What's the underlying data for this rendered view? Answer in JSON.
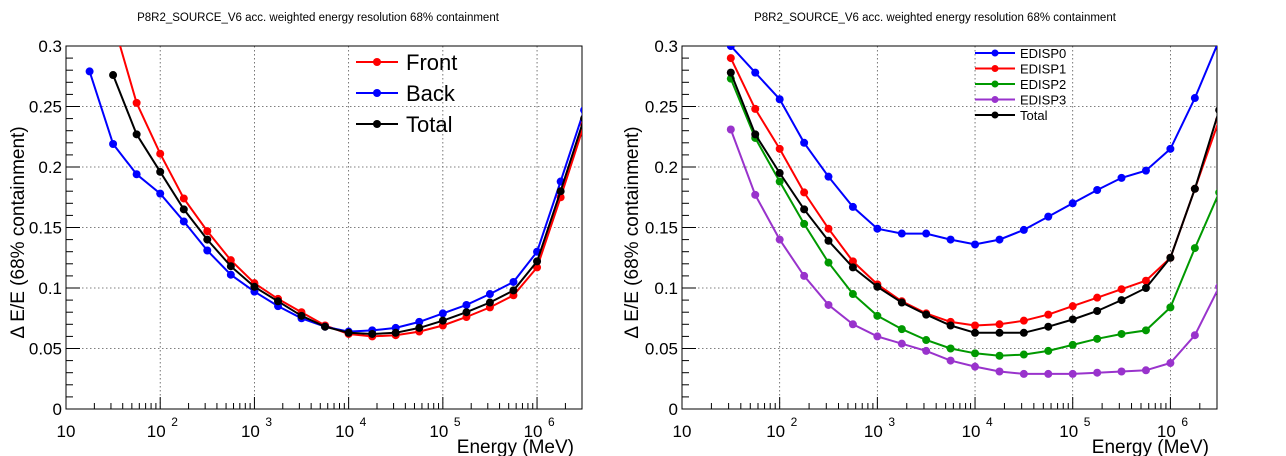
{
  "chart_data": [
    {
      "type": "line",
      "title": "P8R2_SOURCE_V6 acc. weighted energy resolution 68% containment",
      "xlabel": "Energy (MeV)",
      "ylabel": "Δ E/E (68% containment)",
      "xscale": "log",
      "xlim": [
        10,
        3000000
      ],
      "ylim": [
        0,
        0.3
      ],
      "x_ticks": [
        {
          "base": "10",
          "exp": ""
        },
        {
          "base": "10",
          "exp": "2"
        },
        {
          "base": "10",
          "exp": "3"
        },
        {
          "base": "10",
          "exp": "4"
        },
        {
          "base": "10",
          "exp": "5"
        },
        {
          "base": "10",
          "exp": "6"
        }
      ],
      "y_ticks": [
        "0",
        "0.05",
        "0.1",
        "0.15",
        "0.2",
        "0.25",
        "0.3"
      ],
      "grid": true,
      "legend_position": "top-center",
      "series": [
        {
          "name": "Front",
          "color": "#ff0000",
          "x": [
            31.6,
            56.2,
            100,
            178,
            316,
            562,
            1000,
            1780,
            3160,
            5620,
            10000,
            17800,
            31600,
            56200,
            100000,
            178000,
            316000,
            562000,
            1000000,
            1780000,
            3160000
          ],
          "y": [
            0.32,
            0.253,
            0.211,
            0.174,
            0.147,
            0.123,
            0.104,
            0.091,
            0.08,
            0.069,
            0.062,
            0.06,
            0.061,
            0.064,
            0.069,
            0.076,
            0.084,
            0.094,
            0.117,
            0.175,
            0.235
          ]
        },
        {
          "name": "Back",
          "color": "#0000ff",
          "x": [
            17.8,
            31.6,
            56.2,
            100,
            178,
            316,
            562,
            1000,
            1780,
            3160,
            5620,
            10000,
            17800,
            31600,
            56200,
            100000,
            178000,
            316000,
            562000,
            1000000,
            1780000,
            3160000
          ],
          "y": [
            0.279,
            0.219,
            0.194,
            0.178,
            0.155,
            0.131,
            0.111,
            0.097,
            0.085,
            0.075,
            0.068,
            0.064,
            0.065,
            0.067,
            0.072,
            0.079,
            0.086,
            0.095,
            0.105,
            0.13,
            0.188,
            0.247
          ]
        },
        {
          "name": "Total",
          "color": "#000000",
          "x": [
            31.6,
            56.2,
            100,
            178,
            316,
            562,
            1000,
            1780,
            3160,
            5620,
            10000,
            17800,
            31600,
            56200,
            100000,
            178000,
            316000,
            562000,
            1000000,
            1780000,
            3160000
          ],
          "y": [
            0.276,
            0.227,
            0.196,
            0.165,
            0.14,
            0.118,
            0.101,
            0.089,
            0.077,
            0.068,
            0.063,
            0.062,
            0.063,
            0.067,
            0.073,
            0.08,
            0.088,
            0.098,
            0.122,
            0.18,
            0.24
          ]
        }
      ]
    },
    {
      "type": "line",
      "title": "P8R2_SOURCE_V6 acc. weighted energy resolution 68% containment",
      "xlabel": "Energy (MeV)",
      "ylabel": "Δ E/E (68% containment)",
      "xscale": "log",
      "xlim": [
        10,
        3000000
      ],
      "ylim": [
        0,
        0.3
      ],
      "x_ticks": [
        {
          "base": "10",
          "exp": ""
        },
        {
          "base": "10",
          "exp": "2"
        },
        {
          "base": "10",
          "exp": "3"
        },
        {
          "base": "10",
          "exp": "4"
        },
        {
          "base": "10",
          "exp": "5"
        },
        {
          "base": "10",
          "exp": "6"
        }
      ],
      "y_ticks": [
        "0",
        "0.05",
        "0.1",
        "0.15",
        "0.2",
        "0.25",
        "0.3"
      ],
      "grid": true,
      "legend_position": "top-center",
      "series": [
        {
          "name": "EDISP0",
          "color": "#0000ff",
          "x": [
            31.6,
            56.2,
            100,
            178,
            316,
            562,
            1000,
            1780,
            3160,
            5620,
            10000,
            17800,
            31600,
            56200,
            100000,
            178000,
            316000,
            562000,
            1000000,
            1780000,
            3160000
          ],
          "y": [
            0.3,
            0.278,
            0.256,
            0.22,
            0.192,
            0.167,
            0.149,
            0.145,
            0.145,
            0.14,
            0.136,
            0.14,
            0.148,
            0.159,
            0.17,
            0.181,
            0.191,
            0.197,
            0.215,
            0.257,
            0.305
          ]
        },
        {
          "name": "EDISP1",
          "color": "#ff0000",
          "x": [
            31.6,
            56.2,
            100,
            178,
            316,
            562,
            1000,
            1780,
            3160,
            5620,
            10000,
            17800,
            31600,
            56200,
            100000,
            178000,
            316000,
            562000,
            1000000,
            1780000,
            3160000
          ],
          "y": [
            0.29,
            0.248,
            0.215,
            0.179,
            0.149,
            0.122,
            0.103,
            0.089,
            0.079,
            0.072,
            0.069,
            0.07,
            0.073,
            0.078,
            0.085,
            0.092,
            0.099,
            0.106,
            0.125,
            0.182,
            0.239
          ]
        },
        {
          "name": "EDISP2",
          "color": "#009900",
          "x": [
            31.6,
            56.2,
            100,
            178,
            316,
            562,
            1000,
            1780,
            3160,
            5620,
            10000,
            17800,
            31600,
            56200,
            100000,
            178000,
            316000,
            562000,
            1000000,
            1780000,
            3160000
          ],
          "y": [
            0.273,
            0.224,
            0.188,
            0.153,
            0.121,
            0.095,
            0.077,
            0.066,
            0.057,
            0.05,
            0.046,
            0.044,
            0.045,
            0.048,
            0.053,
            0.058,
            0.062,
            0.065,
            0.084,
            0.133,
            0.179
          ]
        },
        {
          "name": "EDISP3",
          "color": "#9933cc",
          "x": [
            31.6,
            56.2,
            100,
            178,
            316,
            562,
            1000,
            1780,
            3160,
            5620,
            10000,
            17800,
            31600,
            56200,
            100000,
            178000,
            316000,
            562000,
            1000000,
            1780000,
            3160000
          ],
          "y": [
            0.231,
            0.177,
            0.14,
            0.11,
            0.086,
            0.07,
            0.06,
            0.054,
            0.048,
            0.04,
            0.035,
            0.031,
            0.029,
            0.029,
            0.029,
            0.03,
            0.031,
            0.032,
            0.038,
            0.061,
            0.101
          ]
        },
        {
          "name": "Total",
          "color": "#000000",
          "x": [
            31.6,
            56.2,
            100,
            178,
            316,
            562,
            1000,
            1780,
            3160,
            5620,
            10000,
            17800,
            31600,
            56200,
            100000,
            178000,
            316000,
            562000,
            1000000,
            1780000,
            3160000
          ],
          "y": [
            0.278,
            0.227,
            0.195,
            0.165,
            0.139,
            0.117,
            0.101,
            0.088,
            0.078,
            0.069,
            0.063,
            0.063,
            0.063,
            0.068,
            0.074,
            0.081,
            0.09,
            0.1,
            0.125,
            0.182,
            0.247
          ]
        }
      ]
    }
  ]
}
